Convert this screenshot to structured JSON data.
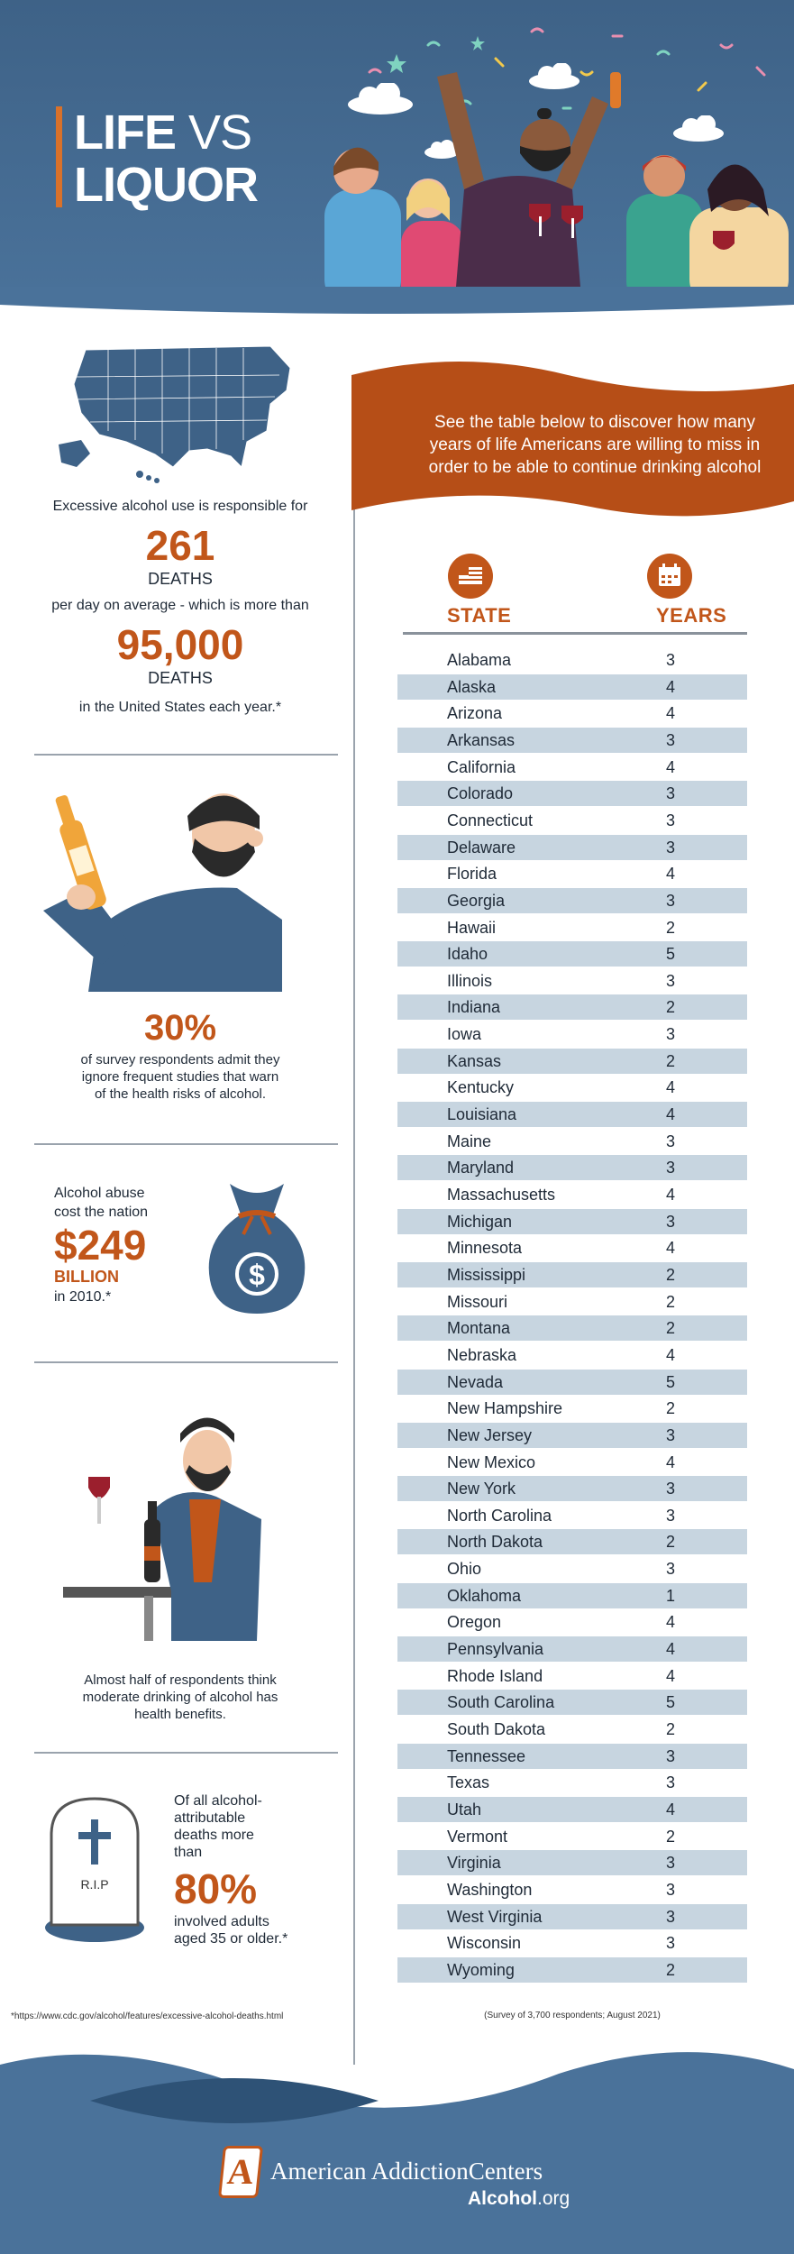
{
  "header": {
    "title_line1_bold": "LIFE",
    "title_line1_light": " VS",
    "title_line2": "LIQUOR"
  },
  "stats": {
    "deaths_intro": "Excessive alcohol use is responsible for",
    "deaths_per_day": "261",
    "deaths_label_1": "DEATHS",
    "deaths_mid": "per day on average - which is more than",
    "deaths_year": "95,000",
    "deaths_label_2": "DEATHS",
    "deaths_outro": "in the United States each year.*",
    "survey_percent": "30%",
    "survey_text_1": "of survey respondents admit they",
    "survey_text_2": "ignore frequent studies that warn",
    "survey_text_3": "of the health risks of alcohol.",
    "cost_line1": "Alcohol abuse",
    "cost_line2": "cost the nation",
    "cost_amount": "$249",
    "cost_unit": "BILLION",
    "cost_year": "in 2010.*",
    "moderate_1": "Almost half of respondents think",
    "moderate_2": "moderate drinking of alcohol has",
    "moderate_3": "health benefits.",
    "age_1": "Of all alcohol-",
    "age_2": "attributable",
    "age_3": "deaths more",
    "age_4": "than",
    "age_percent": "80%",
    "age_5": "involved adults",
    "age_6": "aged 35 or older.*",
    "tombstone_text": "R.I.P"
  },
  "banner": {
    "line1": "See the table below to discover how many",
    "line2": "years of life Americans are willing to miss in",
    "line3": "order to be able to continue drinking alcohol"
  },
  "table": {
    "header_state": "STATE",
    "header_years": "YEARS",
    "rows": [
      {
        "state": "Alabama",
        "years": "3"
      },
      {
        "state": "Alaska",
        "years": "4"
      },
      {
        "state": "Arizona",
        "years": "4"
      },
      {
        "state": "Arkansas",
        "years": "3"
      },
      {
        "state": "California",
        "years": "4"
      },
      {
        "state": "Colorado",
        "years": "3"
      },
      {
        "state": "Connecticut",
        "years": "3"
      },
      {
        "state": "Delaware",
        "years": "3"
      },
      {
        "state": "Florida",
        "years": "4"
      },
      {
        "state": "Georgia",
        "years": "3"
      },
      {
        "state": "Hawaii",
        "years": "2"
      },
      {
        "state": "Idaho",
        "years": "5"
      },
      {
        "state": "Illinois",
        "years": "3"
      },
      {
        "state": "Indiana",
        "years": "2"
      },
      {
        "state": "Iowa",
        "years": "3"
      },
      {
        "state": "Kansas",
        "years": "2"
      },
      {
        "state": "Kentucky",
        "years": "4"
      },
      {
        "state": "Louisiana",
        "years": "4"
      },
      {
        "state": "Maine",
        "years": "3"
      },
      {
        "state": "Maryland",
        "years": "3"
      },
      {
        "state": "Massachusetts",
        "years": "4"
      },
      {
        "state": "Michigan",
        "years": "3"
      },
      {
        "state": "Minnesota",
        "years": "4"
      },
      {
        "state": "Mississippi",
        "years": "2"
      },
      {
        "state": "Missouri",
        "years": "2"
      },
      {
        "state": "Montana",
        "years": "2"
      },
      {
        "state": "Nebraska",
        "years": "4"
      },
      {
        "state": "Nevada",
        "years": "5"
      },
      {
        "state": "New Hampshire",
        "years": "2"
      },
      {
        "state": "New Jersey",
        "years": "3"
      },
      {
        "state": "New Mexico",
        "years": "4"
      },
      {
        "state": "New York",
        "years": "3"
      },
      {
        "state": "North Carolina",
        "years": "3"
      },
      {
        "state": "North Dakota",
        "years": "2"
      },
      {
        "state": "Ohio",
        "years": "3"
      },
      {
        "state": "Oklahoma",
        "years": "1"
      },
      {
        "state": "Oregon",
        "years": "4"
      },
      {
        "state": "Pennsylvania",
        "years": "4"
      },
      {
        "state": "Rhode Island",
        "years": "4"
      },
      {
        "state": "South Carolina",
        "years": "5"
      },
      {
        "state": "South Dakota",
        "years": "2"
      },
      {
        "state": "Tennessee",
        "years": "3"
      },
      {
        "state": "Texas",
        "years": "3"
      },
      {
        "state": "Utah",
        "years": "4"
      },
      {
        "state": "Vermont",
        "years": "2"
      },
      {
        "state": "Virginia",
        "years": "3"
      },
      {
        "state": "Washington",
        "years": "3"
      },
      {
        "state": "West Virginia",
        "years": "3"
      },
      {
        "state": "Wisconsin",
        "years": "3"
      },
      {
        "state": "Wyoming",
        "years": "2"
      }
    ],
    "survey_note": "(Survey of 3,700 respondents; August 2021)"
  },
  "footnote": "*https://www.cdc.gov/alcohol/features/excessive-alcohol-deaths.html",
  "footer": {
    "logo_letter": "A",
    "brand": "American AddictionCenters",
    "site_bold": "Alcohol",
    "site_rest": ".org"
  },
  "colors": {
    "header_blue": "#3e6287",
    "accent_orange": "#c1561a",
    "row_shade": "#c7d5e0",
    "footer_blue": "#3f6690"
  },
  "icons": [
    "flag-icon",
    "calendar-icon",
    "usa-map-icon",
    "beer-bottle-icon",
    "money-bag-icon",
    "wine-glass-icon",
    "tombstone-icon",
    "cloud-icon",
    "confetti-icon"
  ]
}
